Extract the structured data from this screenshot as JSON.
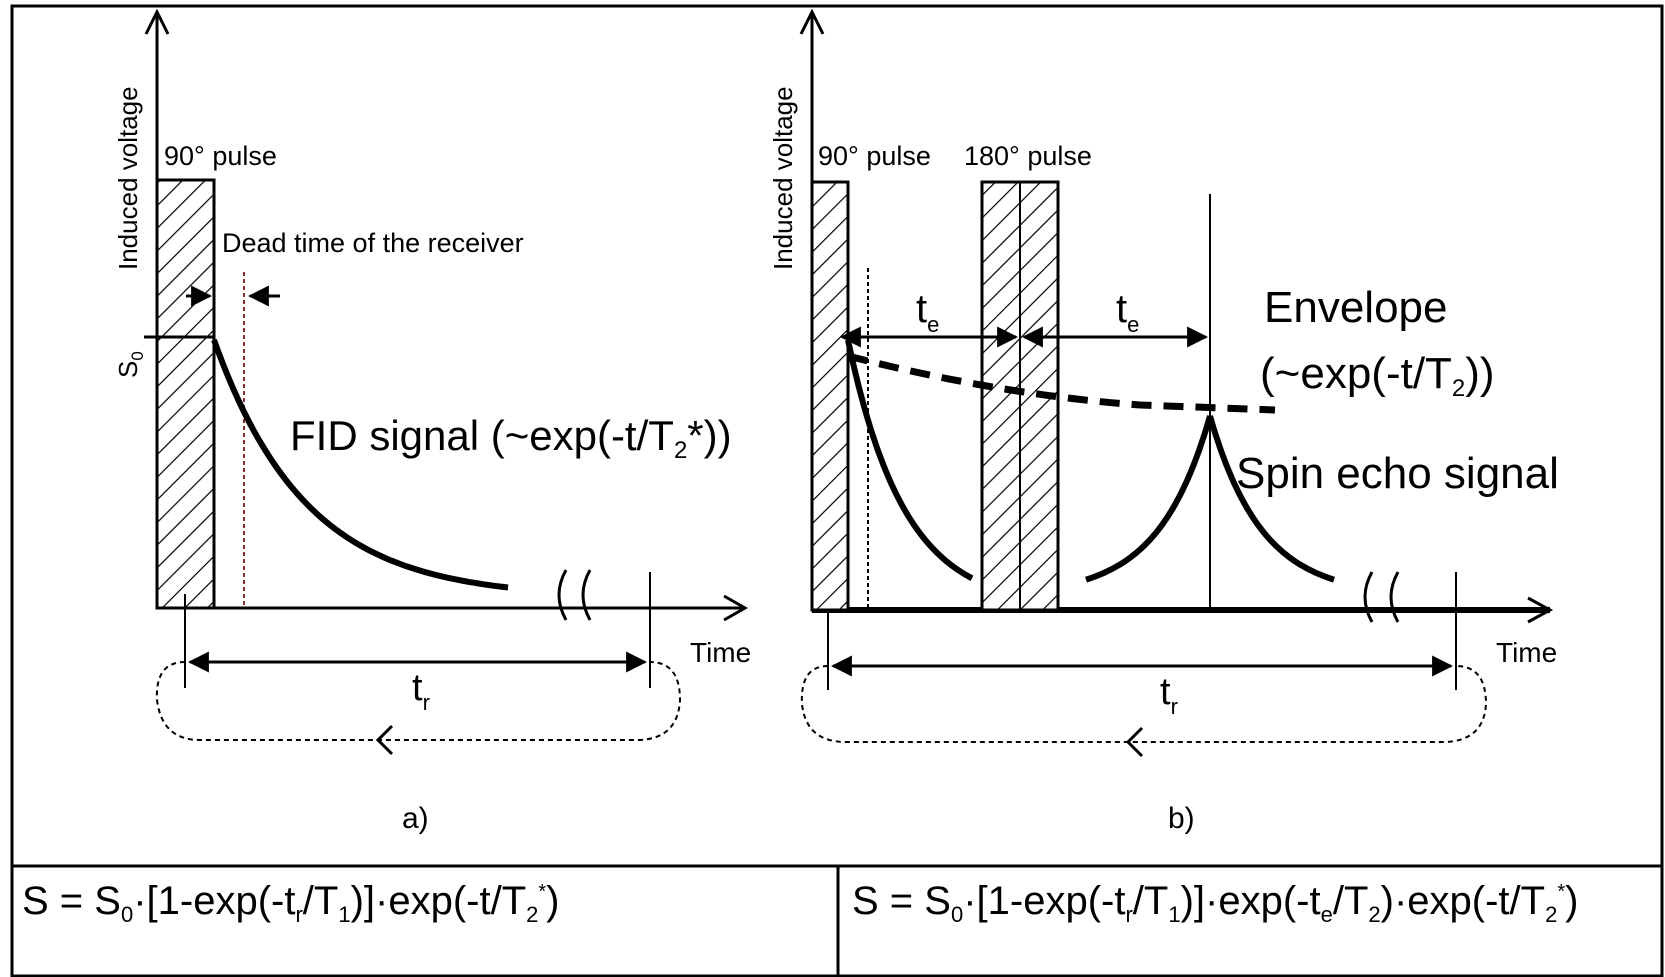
{
  "panel_a": {
    "y_axis_label": "Induced voltage",
    "x_axis_label": "Time",
    "pulse_label": "90° pulse",
    "dead_time_label": "Dead time of the receiver",
    "s0_label": "S",
    "s0_sub": "0",
    "fid_label_pre": "FID signal (~exp(-t/T",
    "fid_label_sub": "2",
    "fid_label_post": "*))",
    "tr_label": "t",
    "tr_sub": "r",
    "caption": "a)"
  },
  "panel_b": {
    "y_axis_label": "Induced voltage",
    "x_axis_label": "Time",
    "pulse90_label": "90° pulse",
    "pulse180_label": "180° pulse",
    "te_label": "t",
    "te_sub": "e",
    "envelope_line1": "Envelope",
    "envelope_line2_pre": "(~exp(-t/T",
    "envelope_line2_sub": "2",
    "envelope_line2_post": "))",
    "spin_echo_label": "Spin echo signal",
    "tr_label": "t",
    "tr_sub": "r",
    "caption": "b)"
  },
  "formula_a": {
    "p1": "S = S",
    "s1": "0",
    "p2": "·[1-exp(-t",
    "s2": "r",
    "p3": "/T",
    "s3": "1",
    "p4": ")]·exp(-t/T",
    "s4": "2",
    "sup4": "*",
    "p5": ")"
  },
  "formula_b": {
    "p1": "S = S",
    "s1": "0",
    "p2": "·[1-exp(-t",
    "s2": "r",
    "p3": "/T",
    "s3": "1",
    "p4": ")]·exp(-t",
    "s4": "e",
    "p5": "/T",
    "s5": "2",
    "p6": ")·exp(-t/T",
    "s6": "2",
    "sup6": "*",
    "p7": ")"
  },
  "colors": {
    "ink": "#000000",
    "dead_time_line": "#8a2f2f",
    "background": "#ffffff"
  }
}
